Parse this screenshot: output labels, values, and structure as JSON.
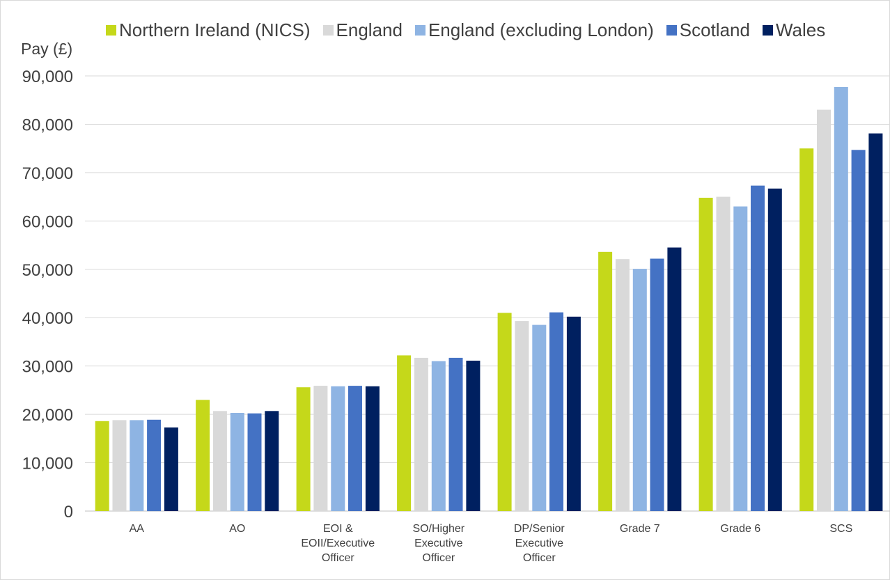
{
  "chart_data": {
    "type": "bar",
    "ylabel": "Pay (£)",
    "xlabel": "",
    "ylim": [
      0,
      90000
    ],
    "yticks": [
      0,
      10000,
      20000,
      30000,
      40000,
      50000,
      60000,
      70000,
      80000,
      90000
    ],
    "ytick_labels": [
      "0",
      "10,000",
      "20,000",
      "30,000",
      "40,000",
      "50,000",
      "60,000",
      "70,000",
      "80,000",
      "90,000"
    ],
    "grid": true,
    "legend_position": "top",
    "categories": [
      [
        "AA"
      ],
      [
        "AO"
      ],
      [
        "EOI &",
        "EOII/Executive",
        "Officer"
      ],
      [
        "SO/Higher",
        "Executive",
        "Officer"
      ],
      [
        "DP/Senior",
        "Executive",
        "Officer"
      ],
      [
        "Grade 7"
      ],
      [
        "Grade 6"
      ],
      [
        "SCS"
      ]
    ],
    "series": [
      {
        "name": "Northern Ireland (NICS)",
        "color": "#c5d81a",
        "values": [
          18600,
          23000,
          25600,
          32200,
          41000,
          53600,
          64800,
          75000
        ]
      },
      {
        "name": "England",
        "color": "#d9d9d9",
        "values": [
          18800,
          20700,
          25900,
          31700,
          39300,
          52100,
          65000,
          83000
        ]
      },
      {
        "name": "England (excluding London)",
        "color": "#8eb4e3",
        "values": [
          18800,
          20300,
          25800,
          31000,
          38500,
          50100,
          63000,
          87700
        ]
      },
      {
        "name": "Scotland",
        "color": "#4472c4",
        "values": [
          18900,
          20200,
          25900,
          31700,
          41100,
          52200,
          67300,
          74700
        ]
      },
      {
        "name": "Wales",
        "color": "#002060",
        "values": [
          17300,
          20700,
          25800,
          31100,
          40200,
          54500,
          66700,
          78100
        ]
      }
    ]
  }
}
